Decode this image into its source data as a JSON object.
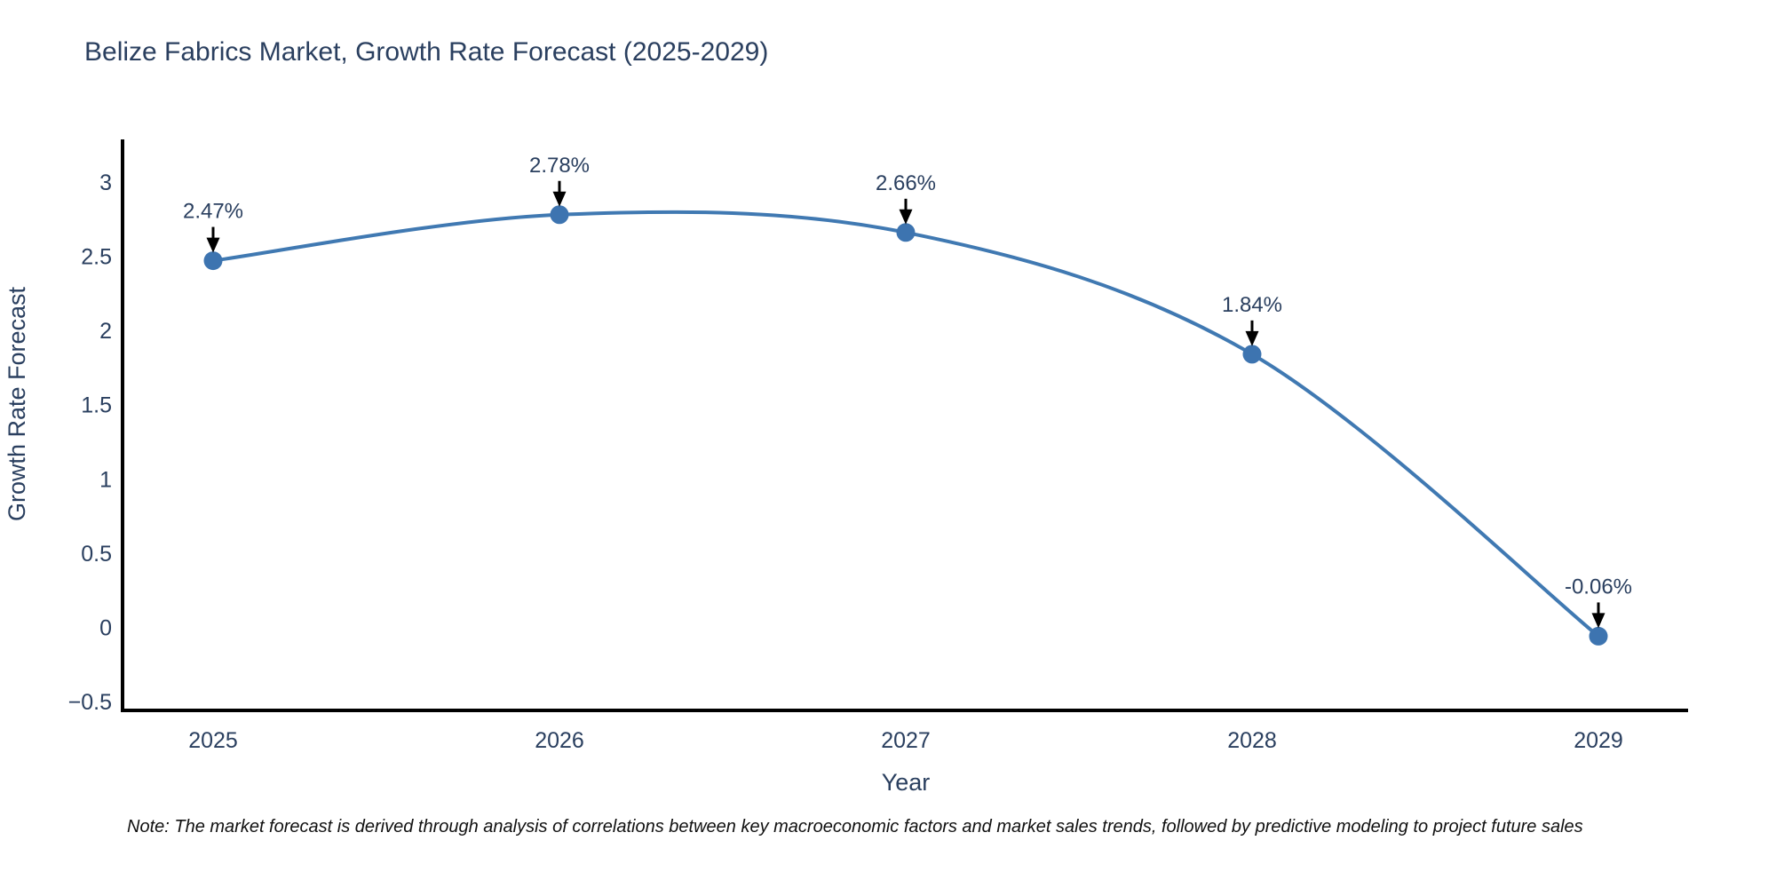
{
  "header": {
    "title": "Belize Fabrics Market, Growth Rate Forecast (2025-2029)"
  },
  "footer": {
    "note": "Note: The market forecast is derived through analysis of correlations between key macroeconomic factors and market sales trends, followed by predictive modeling to project future sales"
  },
  "chart_data": {
    "type": "line",
    "title": "Belize Fabrics Market, Growth Rate Forecast (2025-2029)",
    "xlabel": "Year",
    "ylabel": "Growth Rate Forecast",
    "categories": [
      "2025",
      "2026",
      "2027",
      "2028",
      "2029"
    ],
    "values": [
      2.47,
      2.78,
      2.66,
      1.84,
      -0.06
    ],
    "point_labels": [
      "2.47%",
      "2.78%",
      "2.66%",
      "1.84%",
      "-0.06%"
    ],
    "yticks": [
      3,
      2.5,
      2,
      1.5,
      1,
      0.5,
      0,
      -0.5
    ],
    "ytick_labels": [
      "3",
      "2.5",
      "2",
      "1.5",
      "1",
      "0.5",
      "0",
      "−0.5"
    ],
    "ylim": [
      -0.5,
      3.25
    ],
    "grid": false,
    "legend": false,
    "line_shape": "spline",
    "line_color": "#4079b2",
    "marker_color": "#3d74b0",
    "axis_color": "#000000",
    "text_color": "#2a3f5f",
    "annotation_arrow_color": "#000000"
  }
}
